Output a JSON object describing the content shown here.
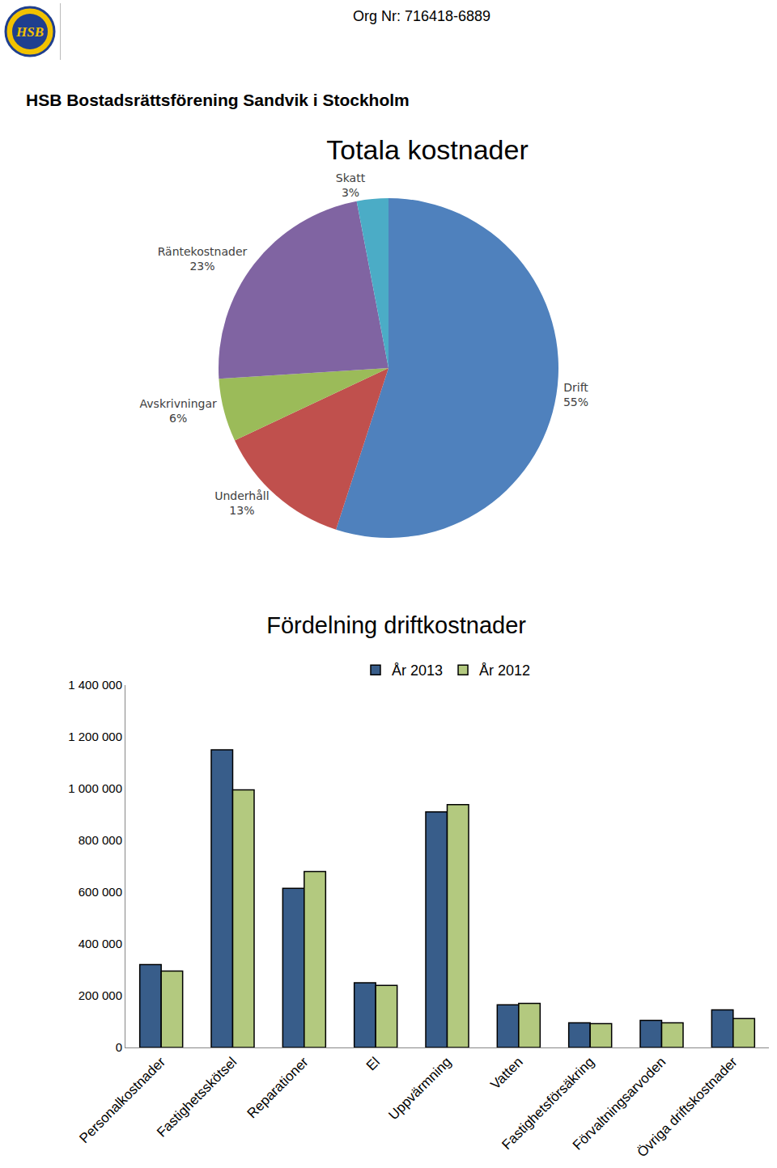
{
  "header": {
    "logo": "HSB",
    "org_nr": "Org Nr: 716418-6889",
    "title": "HSB Bostadsrättsförening Sandvik i Stockholm"
  },
  "chart_data": [
    {
      "type": "pie",
      "title": "Totala kostnader",
      "categories": [
        "Drift",
        "Underhåll",
        "Avskrivningar",
        "Räntekostnader",
        "Skatt"
      ],
      "values": [
        55,
        13,
        6,
        23,
        3
      ],
      "value_labels": [
        "55%",
        "13%",
        "6%",
        "23%",
        "3%"
      ],
      "colors": [
        "#4f81bd",
        "#c0504d",
        "#9bbb59",
        "#8064a2",
        "#4bacc6"
      ],
      "data_labels": true
    },
    {
      "type": "bar",
      "title": "Fördelning driftkostnader",
      "categories": [
        "Personalkostnader",
        "Fastighetsskötsel",
        "Reparationer",
        "El",
        "Uppvärmning",
        "Vatten",
        "Fastighetsförsäkring",
        "Förvaltningsarvoden",
        "Övriga driftskostnader"
      ],
      "series": [
        {
          "name": "År 2013",
          "color": "#385d8a",
          "values": [
            320000,
            1150000,
            615000,
            250000,
            910000,
            165000,
            95000,
            105000,
            145000
          ]
        },
        {
          "name": "År 2012",
          "color": "#b3c97f",
          "values": [
            295000,
            995000,
            680000,
            240000,
            938000,
            170000,
            92000,
            95000,
            112000
          ]
        }
      ],
      "ylim": [
        0,
        1400000
      ],
      "yticks": [
        0,
        {
          "value": 200000,
          "label": "200 000"
        },
        {
          "value": 400000,
          "label": "400 000"
        },
        {
          "value": 600000,
          "label": "600 000"
        },
        {
          "value": 800000,
          "label": "800 000"
        },
        {
          "value": 1000000,
          "label": "1 000 000"
        },
        {
          "value": 1200000,
          "label": "1 200 000"
        },
        {
          "value": 1400000,
          "label": "1 400 000"
        }
      ],
      "grid": false,
      "legend": "top"
    }
  ]
}
